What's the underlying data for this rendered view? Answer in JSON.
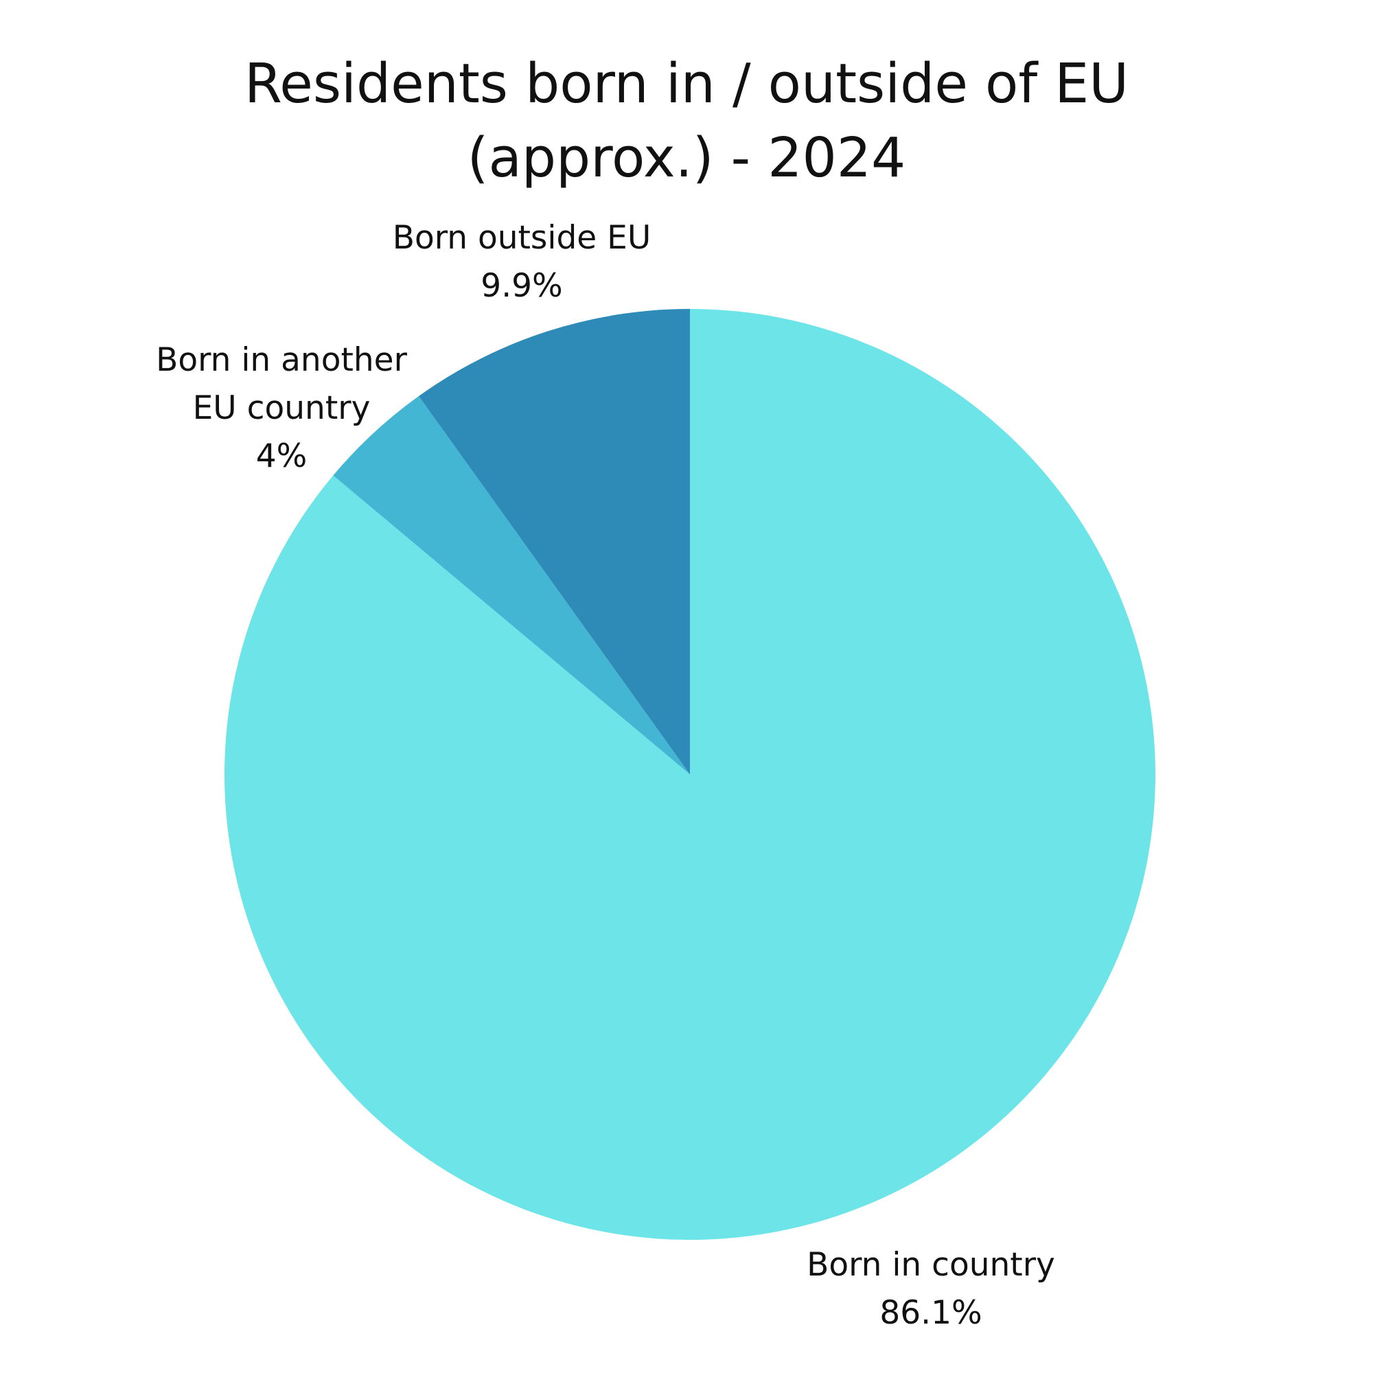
{
  "chart_data": {
    "type": "pie",
    "title_lines": [
      "Residents born in / outside of EU",
      "(approx.) - 2024"
    ],
    "slices": [
      {
        "label": "Born in country",
        "value": 86.1,
        "value_label": "86.1%",
        "color": "#6ce4e8"
      },
      {
        "label": "Born in another EU country",
        "label_lines": [
          "Born in another",
          "EU country"
        ],
        "value": 4,
        "value_label": "4%",
        "color": "#43b6d4"
      },
      {
        "label": "Born outside EU",
        "value": 9.9,
        "value_label": "9.9%",
        "color": "#2e8bb8"
      }
    ],
    "start_angle": "12 o'clock",
    "direction": "clockwise",
    "legend": "none",
    "labels": "outside slices"
  }
}
